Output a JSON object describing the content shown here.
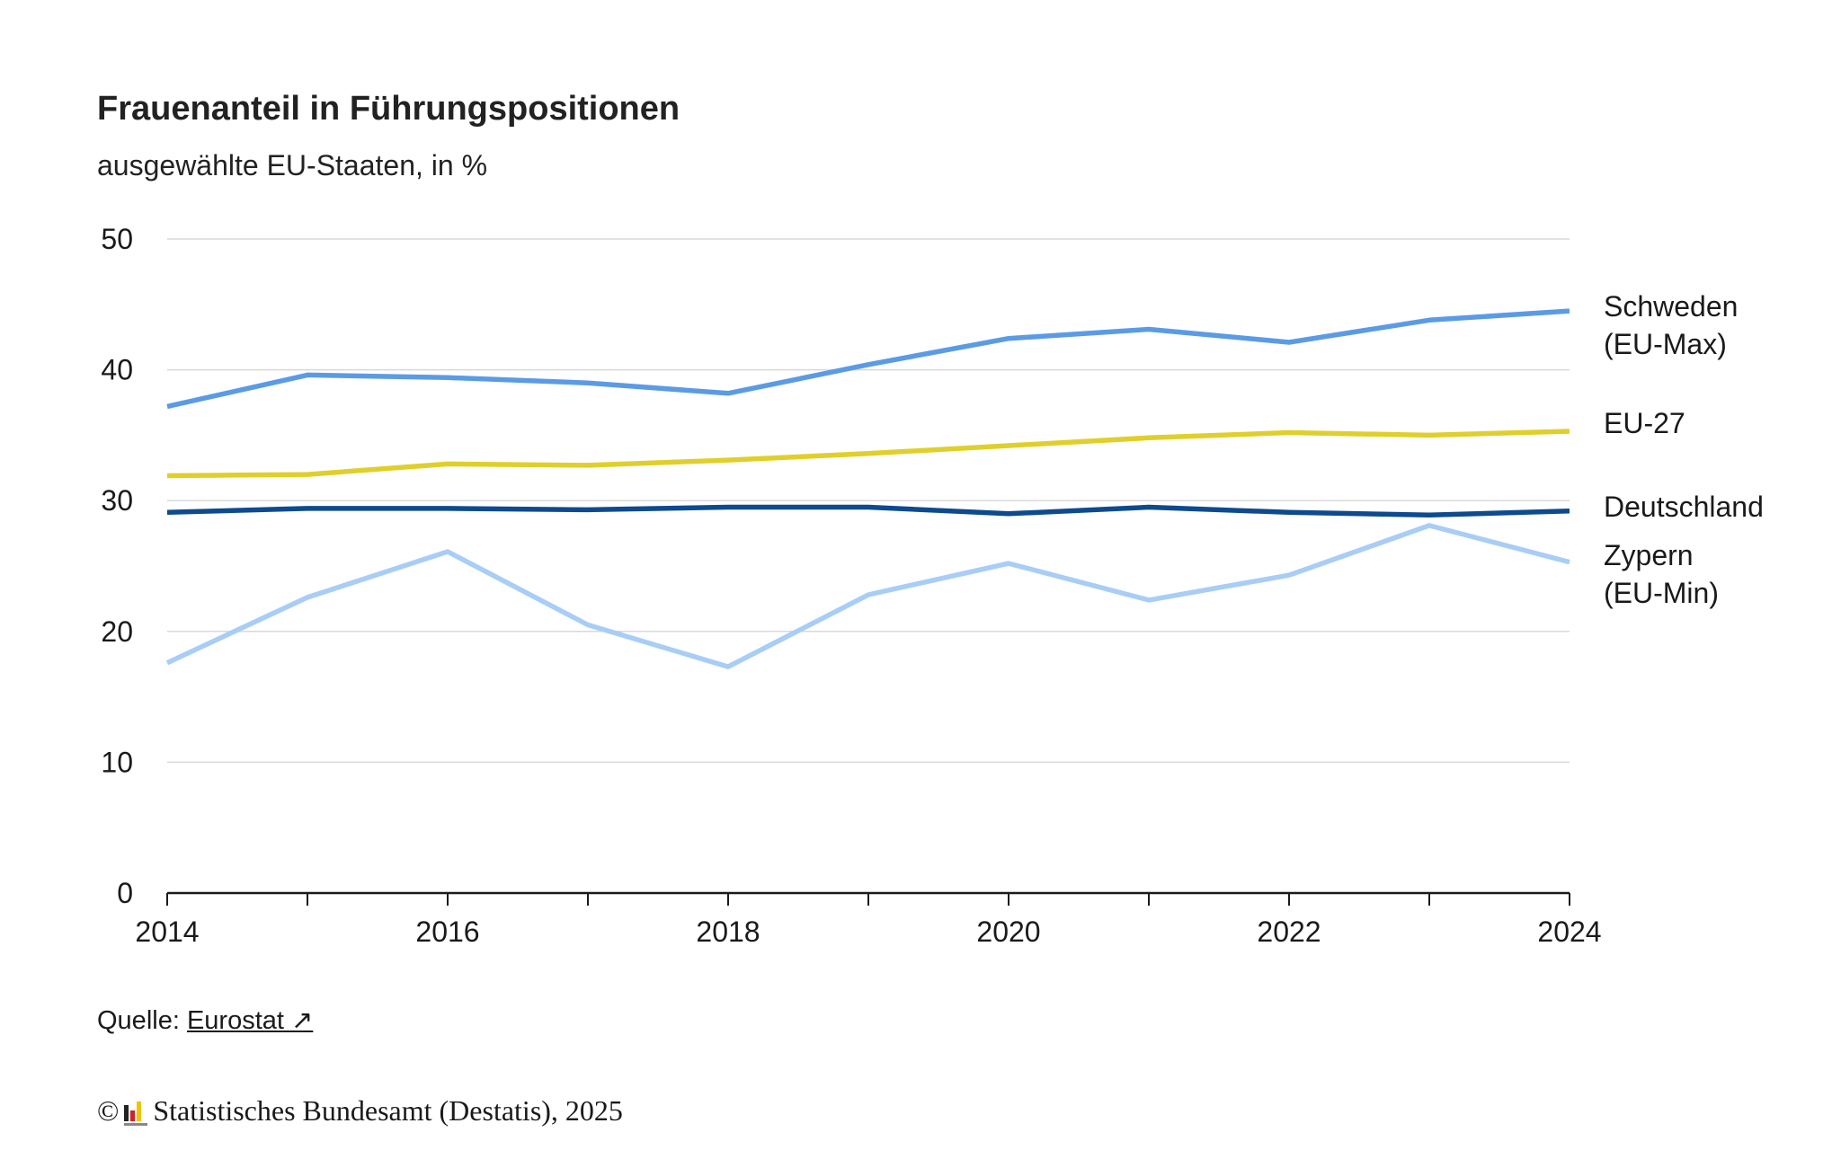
{
  "title": "Frauenanteil in Führungspositionen",
  "subtitle": "ausgewählte EU-Staaten, in %",
  "source": {
    "prefix": "Quelle: ",
    "link_text": "Eurostat",
    "link_icon": "↗"
  },
  "copyright": {
    "symbol": "©",
    "text": "Statistisches Bundesamt (Destatis), 2025"
  },
  "chart_data": {
    "type": "line",
    "title": "Frauenanteil in Führungspositionen",
    "subtitle": "ausgewählte EU-Staaten, in %",
    "xlabel": "",
    "ylabel": "",
    "x": [
      2014,
      2015,
      2016,
      2017,
      2018,
      2019,
      2020,
      2021,
      2022,
      2023,
      2024
    ],
    "xlim": [
      2014,
      2024
    ],
    "ylim": [
      0,
      50
    ],
    "xticks": [
      2014,
      2016,
      2018,
      2020,
      2022,
      2024
    ],
    "yticks": [
      0,
      10,
      20,
      30,
      40,
      50
    ],
    "grid": true,
    "series": [
      {
        "name": "Schweden (EU-Max)",
        "label_lines": [
          "Schweden",
          "(EU-Max)"
        ],
        "color": "#5b9be5",
        "values": [
          37.2,
          39.6,
          39.4,
          39.0,
          38.2,
          40.4,
          42.4,
          43.1,
          42.1,
          43.8,
          44.5
        ]
      },
      {
        "name": "EU-27",
        "label_lines": [
          "EU-27"
        ],
        "color": "#e0cf2b",
        "values": [
          31.9,
          32.0,
          32.8,
          32.7,
          33.1,
          33.6,
          34.2,
          34.8,
          35.2,
          35.0,
          35.3
        ]
      },
      {
        "name": "Deutschland",
        "label_lines": [
          "Deutschland"
        ],
        "color": "#0d4a8f",
        "values": [
          29.1,
          29.4,
          29.4,
          29.3,
          29.5,
          29.5,
          29.0,
          29.5,
          29.1,
          28.9,
          29.2
        ]
      },
      {
        "name": "Zypern (EU-Min)",
        "label_lines": [
          "Zypern",
          "(EU-Min)"
        ],
        "color": "#a8cdf6",
        "values": [
          17.6,
          22.6,
          26.1,
          20.5,
          17.3,
          22.8,
          25.2,
          22.4,
          24.3,
          28.1,
          25.3
        ]
      }
    ]
  }
}
